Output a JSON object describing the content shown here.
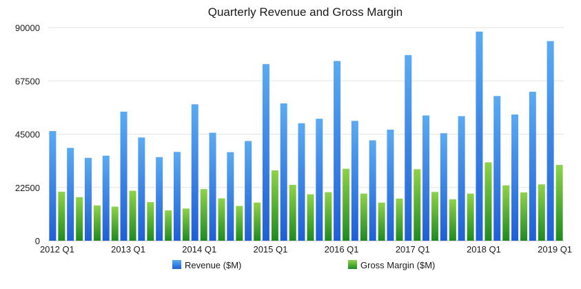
{
  "chart_data": {
    "type": "bar",
    "title": "Quarterly Revenue and Gross Margin",
    "xlabel": "",
    "ylabel": "",
    "ylim": [
      0,
      90000
    ],
    "y_ticks": [
      0,
      22500,
      45000,
      67500,
      90000
    ],
    "grid": true,
    "legend_position": "bottom",
    "categories": [
      "2012 Q1",
      "2012 Q2",
      "2012 Q3",
      "2012 Q4",
      "2013 Q1",
      "2013 Q2",
      "2013 Q3",
      "2013 Q4",
      "2014 Q1",
      "2014 Q2",
      "2014 Q3",
      "2014 Q4",
      "2015 Q1",
      "2015 Q2",
      "2015 Q3",
      "2015 Q4",
      "2016 Q1",
      "2016 Q2",
      "2016 Q3",
      "2016 Q4",
      "2017 Q1",
      "2017 Q2",
      "2017 Q3",
      "2017 Q4",
      "2018 Q1",
      "2018 Q2",
      "2018 Q3",
      "2018 Q4",
      "2019 Q1"
    ],
    "x_tick_labels": [
      {
        "index": 0,
        "label": "2012 Q1"
      },
      {
        "index": 4,
        "label": "2013 Q1"
      },
      {
        "index": 8,
        "label": "2014 Q1"
      },
      {
        "index": 12,
        "label": "2015 Q1"
      },
      {
        "index": 16,
        "label": "2016 Q1"
      },
      {
        "index": 20,
        "label": "2017 Q1"
      },
      {
        "index": 24,
        "label": "2018 Q1"
      },
      {
        "index": 28,
        "label": "2019 Q1"
      }
    ],
    "series": [
      {
        "name": "Revenue ($M)",
        "color_top": "#5aaaf2",
        "color_bottom": "#1f5fd6",
        "values": [
          46300,
          39200,
          35000,
          35900,
          54500,
          43600,
          35300,
          37500,
          57600,
          45600,
          37400,
          42100,
          74600,
          58000,
          49600,
          51500,
          75900,
          50600,
          42400,
          46900,
          78400,
          52900,
          45400,
          52600,
          88300,
          61100,
          53300,
          62900,
          84300
        ]
      },
      {
        "name": "Gross Margin ($M)",
        "color_top": "#8fd24a",
        "color_bottom": "#1f8a22",
        "values": [
          20700,
          18400,
          14900,
          14400,
          21100,
          16300,
          12800,
          13600,
          21800,
          17900,
          14700,
          16100,
          29700,
          23600,
          19600,
          20500,
          30400,
          19900,
          16100,
          17800,
          30200,
          20600,
          17500,
          19900,
          33100,
          23400,
          20400,
          23800,
          32000
        ]
      }
    ]
  }
}
